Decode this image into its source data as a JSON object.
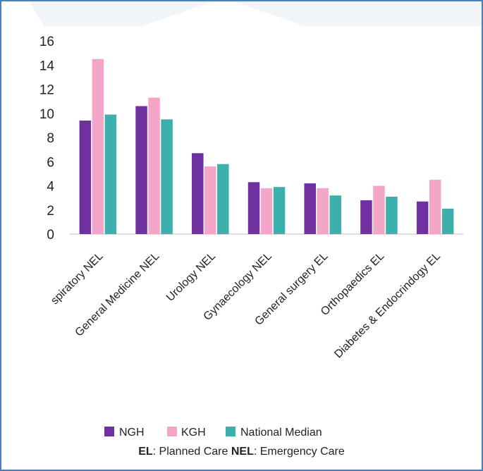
{
  "chart_data": {
    "type": "bar",
    "categories": [
      "spiratory NEL",
      "General Medicine NEL",
      "Urology NEL",
      "Gynaecology NEL",
      "General surgery EL",
      "Orthopaedics EL",
      "Diabetes & Endocrindogy EL"
    ],
    "series": [
      {
        "name": "NGH",
        "color": "#7030a0",
        "values": [
          9.4,
          10.6,
          6.7,
          4.3,
          4.2,
          2.8,
          2.7
        ]
      },
      {
        "name": "KGH",
        "color": "#f4a6c8",
        "values": [
          14.5,
          11.3,
          5.6,
          3.8,
          3.8,
          4.0,
          4.5
        ]
      },
      {
        "name": "National Median",
        "color": "#3cb0ac",
        "values": [
          9.9,
          9.5,
          5.8,
          3.9,
          3.2,
          3.1,
          2.1
        ]
      }
    ],
    "yticks": [
      0,
      2,
      4,
      6,
      8,
      10,
      12,
      14,
      16
    ],
    "ylim": [
      0,
      16
    ],
    "grid": false,
    "legend_position": "bottom"
  },
  "footnote": {
    "el_abbr": "EL",
    "el_text": ": Planned Care ",
    "nel_abbr": "NEL",
    "nel_text": ": Emergency Care"
  }
}
